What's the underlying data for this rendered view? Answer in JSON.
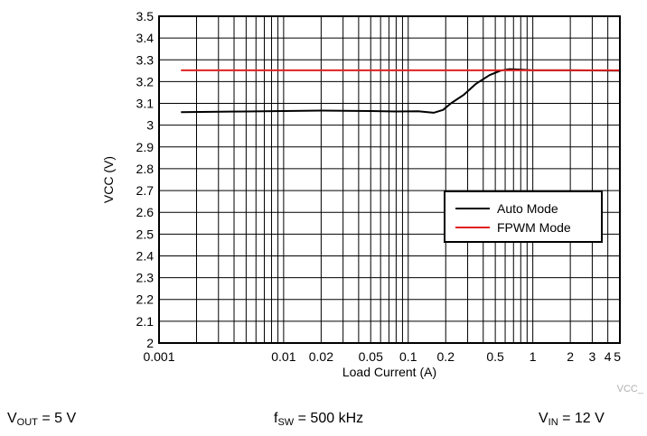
{
  "chart_data": {
    "type": "line",
    "xlabel": "Load Current (A)",
    "ylabel": "VCC (V)",
    "x_scale": "log",
    "xlim": [
      0.001,
      5
    ],
    "ylim": [
      2,
      3.5
    ],
    "x_ticks": [
      {
        "value": 0.001,
        "label": "0.001"
      },
      {
        "value": 0.01,
        "label": "0.01"
      },
      {
        "value": 0.02,
        "label": "0.02"
      },
      {
        "value": 0.05,
        "label": "0.05"
      },
      {
        "value": 0.1,
        "label": "0.1"
      },
      {
        "value": 0.2,
        "label": "0.2"
      },
      {
        "value": 0.5,
        "label": "0.5"
      },
      {
        "value": 1,
        "label": "1"
      },
      {
        "value": 2,
        "label": "2"
      },
      {
        "value": 3,
        "label": "3"
      },
      {
        "value": 4,
        "label": "4"
      },
      {
        "value": 5,
        "label": "5"
      }
    ],
    "y_ticks": [
      "2",
      "2.1",
      "2.2",
      "2.3",
      "2.4",
      "2.5",
      "2.6",
      "2.7",
      "2.8",
      "2.9",
      "3",
      "3.1",
      "3.2",
      "3.3",
      "3.4",
      "3.5"
    ],
    "grid": true,
    "legend_position": "right",
    "series": [
      {
        "name": "Auto Mode",
        "color": "#000000",
        "x": [
          0.0015,
          0.005,
          0.01,
          0.02,
          0.05,
          0.08,
          0.12,
          0.16,
          0.19,
          0.22,
          0.28,
          0.35,
          0.45,
          0.55,
          0.65,
          0.8,
          1,
          2,
          5
        ],
        "y": [
          3.06,
          3.063,
          3.065,
          3.067,
          3.065,
          3.063,
          3.064,
          3.057,
          3.07,
          3.1,
          3.14,
          3.19,
          3.23,
          3.25,
          3.257,
          3.255,
          3.252,
          3.252,
          3.25
        ]
      },
      {
        "name": "FPWM Mode",
        "color": "#e02020",
        "x": [
          0.0015,
          0.01,
          0.1,
          0.5,
          1,
          5
        ],
        "y": [
          3.252,
          3.252,
          3.252,
          3.252,
          3.252,
          3.252
        ]
      }
    ]
  },
  "watermark": "VCC_",
  "conditions": {
    "vout": {
      "symbol": "V",
      "sub": "OUT",
      "value": " = 5 V"
    },
    "fsw": {
      "symbol": "f",
      "sub": "SW",
      "value": " = 500 kHz"
    },
    "vin": {
      "symbol": "V",
      "sub": "IN",
      "value": " = 12 V"
    }
  }
}
